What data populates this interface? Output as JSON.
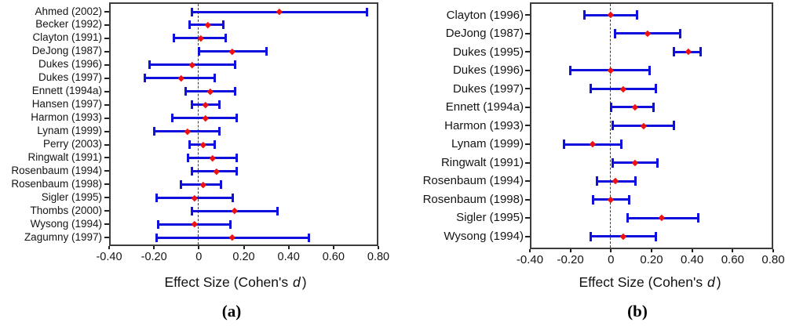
{
  "figure": {
    "background": "#ffffff",
    "bar_color": "#1010dc",
    "marker_color": "#ee1111",
    "frame_color": "#3d3d3d",
    "text_color": "#151515",
    "xlabel_prefix": "Effect Size (Cohen's ",
    "xlabel_italic": "d",
    "xlabel_suffix": ")"
  },
  "chart_data": [
    {
      "type": "forest",
      "panel_label": "(a)",
      "xlabel": "Effect Size (Cohen's d)",
      "xlim": [
        -0.4,
        0.8
      ],
      "x_ticks": [
        -0.4,
        -0.2,
        0,
        0.2,
        0.4,
        0.6,
        0.8
      ],
      "x_tick_labels": [
        "-0.40",
        "-0.20",
        "0",
        "0.20",
        "0.40",
        "0.60",
        "0.80"
      ],
      "zero_reference_line": 0,
      "grid": false,
      "studies": [
        {
          "label": "Ahmed (2002)",
          "point": 0.36,
          "ci_low": -0.03,
          "ci_high": 0.75
        },
        {
          "label": "Becker (1992)",
          "point": 0.04,
          "ci_low": -0.04,
          "ci_high": 0.11
        },
        {
          "label": "Clayton (1991)",
          "point": 0.01,
          "ci_low": -0.11,
          "ci_high": 0.12
        },
        {
          "label": "DeJong (1987)",
          "point": 0.15,
          "ci_low": 0.0,
          "ci_high": 0.3
        },
        {
          "label": "Dukes (1996)",
          "point": -0.03,
          "ci_low": -0.22,
          "ci_high": 0.16
        },
        {
          "label": "Dukes (1997)",
          "point": -0.08,
          "ci_low": -0.24,
          "ci_high": 0.07
        },
        {
          "label": "Ennett (1994a)",
          "point": 0.05,
          "ci_low": -0.06,
          "ci_high": 0.16
        },
        {
          "label": "Hansen (1997)",
          "point": 0.03,
          "ci_low": -0.03,
          "ci_high": 0.09
        },
        {
          "label": "Harmon (1993)",
          "point": 0.03,
          "ci_low": -0.12,
          "ci_high": 0.17
        },
        {
          "label": "Lynam (1999)",
          "point": -0.05,
          "ci_low": -0.2,
          "ci_high": 0.09
        },
        {
          "label": "Perry (2003)",
          "point": 0.02,
          "ci_low": -0.04,
          "ci_high": 0.07
        },
        {
          "label": "Ringwalt (1991)",
          "point": 0.06,
          "ci_low": -0.05,
          "ci_high": 0.17
        },
        {
          "label": "Rosenbaum (1994)",
          "point": 0.08,
          "ci_low": -0.03,
          "ci_high": 0.17
        },
        {
          "label": "Rosenbaum (1998)",
          "point": 0.02,
          "ci_low": -0.08,
          "ci_high": 0.1
        },
        {
          "label": "Sigler (1995)",
          "point": -0.02,
          "ci_low": -0.19,
          "ci_high": 0.15
        },
        {
          "label": "Thombs (2000)",
          "point": 0.16,
          "ci_low": -0.03,
          "ci_high": 0.35
        },
        {
          "label": "Wysong (1994)",
          "point": -0.02,
          "ci_low": -0.18,
          "ci_high": 0.14
        },
        {
          "label": "Zagumny (1997)",
          "point": 0.15,
          "ci_low": -0.19,
          "ci_high": 0.49
        }
      ]
    },
    {
      "type": "forest",
      "panel_label": "(b)",
      "xlabel": "Effect Size (Cohen's d)",
      "xlim": [
        -0.4,
        0.8
      ],
      "x_ticks": [
        -0.4,
        -0.2,
        0,
        0.2,
        0.4,
        0.6,
        0.8
      ],
      "x_tick_labels": [
        "-0.40",
        "-0.20",
        "0",
        "0.20",
        "0.40",
        "0.60",
        "0.80"
      ],
      "zero_reference_line": 0,
      "grid": false,
      "studies": [
        {
          "label": "Clayton (1996)",
          "point": 0.0,
          "ci_low": -0.13,
          "ci_high": 0.13
        },
        {
          "label": "DeJong (1987)",
          "point": 0.18,
          "ci_low": 0.02,
          "ci_high": 0.34
        },
        {
          "label": "Dukes (1995)",
          "point": 0.38,
          "ci_low": 0.31,
          "ci_high": 0.44
        },
        {
          "label": "Dukes (1996)",
          "point": 0.0,
          "ci_low": -0.2,
          "ci_high": 0.19
        },
        {
          "label": "Dukes (1997)",
          "point": 0.06,
          "ci_low": -0.1,
          "ci_high": 0.22
        },
        {
          "label": "Ennett (1994a)",
          "point": 0.12,
          "ci_low": 0.0,
          "ci_high": 0.21
        },
        {
          "label": "Harmon (1993)",
          "point": 0.16,
          "ci_low": 0.01,
          "ci_high": 0.31
        },
        {
          "label": "Lynam (1999)",
          "point": -0.09,
          "ci_low": -0.23,
          "ci_high": 0.05
        },
        {
          "label": "Ringwalt (1991)",
          "point": 0.12,
          "ci_low": 0.01,
          "ci_high": 0.23
        },
        {
          "label": "Rosenbaum (1994)",
          "point": 0.02,
          "ci_low": -0.07,
          "ci_high": 0.12
        },
        {
          "label": "Rosenbaum (1998)",
          "point": 0.0,
          "ci_low": -0.09,
          "ci_high": 0.09
        },
        {
          "label": "Sigler (1995)",
          "point": 0.25,
          "ci_low": 0.08,
          "ci_high": 0.43
        },
        {
          "label": "Wysong (1994)",
          "point": 0.06,
          "ci_low": -0.1,
          "ci_high": 0.22
        }
      ]
    }
  ]
}
